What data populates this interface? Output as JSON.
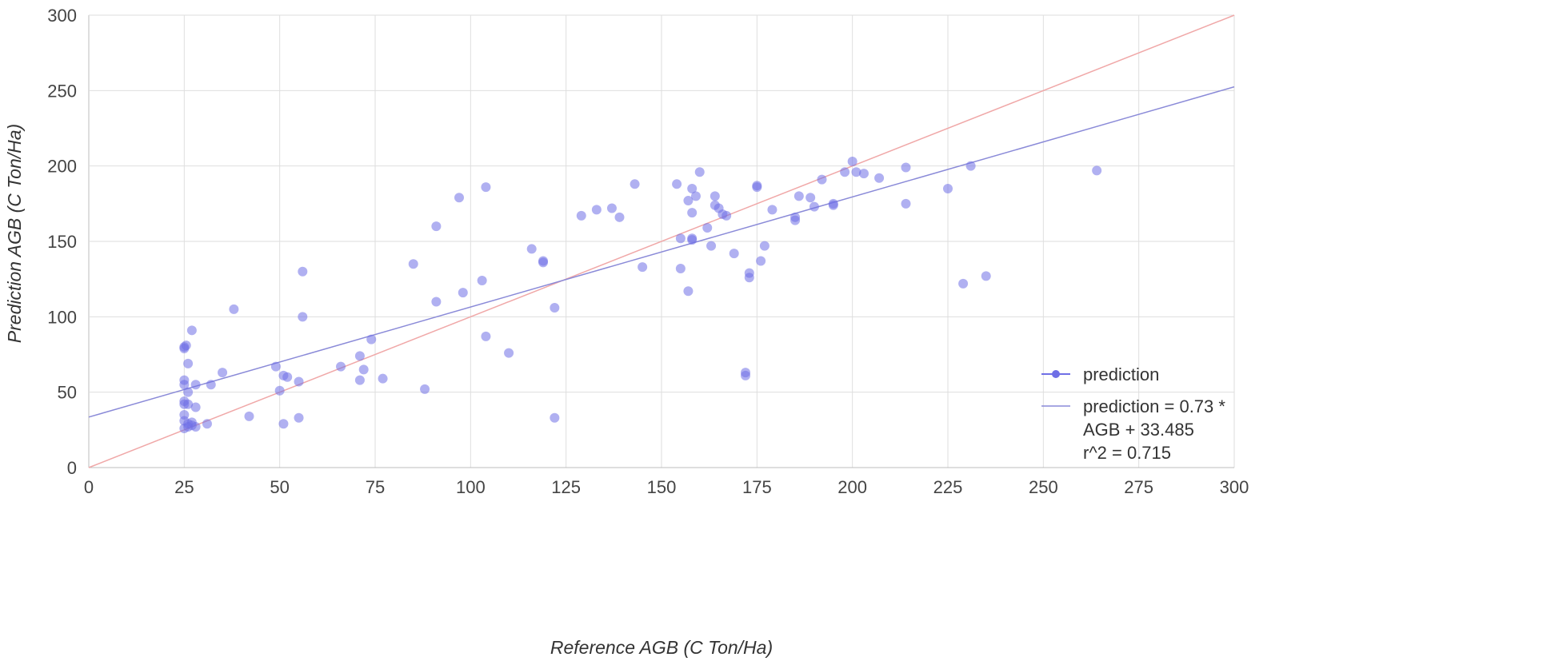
{
  "chart_data": {
    "type": "scatter",
    "xlabel": "Reference AGB (C Ton/Ha)",
    "ylabel": "Prediction AGB (C Ton/Ha)",
    "xlim": [
      0,
      300
    ],
    "ylim": [
      0,
      300
    ],
    "xticks": [
      "0",
      "25",
      "50",
      "75",
      "100",
      "125",
      "150",
      "175",
      "200",
      "225",
      "250",
      "275",
      "300"
    ],
    "yticks": [
      "0",
      "50",
      "100",
      "150",
      "200",
      "250",
      "300"
    ],
    "grid": true,
    "legend_position": "bottom-right",
    "colors": {
      "points": "#6f6fe6",
      "trendline": "#8a8ad8",
      "identity": "#f0a8a8",
      "grid": "#dedede"
    },
    "series": [
      {
        "name": "prediction",
        "points": [
          [
            25,
            80
          ],
          [
            25,
            79
          ],
          [
            25.5,
            81
          ],
          [
            25,
            58
          ],
          [
            25,
            55
          ],
          [
            26,
            50
          ],
          [
            26,
            69
          ],
          [
            27,
            91
          ],
          [
            28,
            55
          ],
          [
            28,
            40
          ],
          [
            25,
            44
          ],
          [
            25,
            42
          ],
          [
            26,
            42
          ],
          [
            25,
            35
          ],
          [
            25,
            31
          ],
          [
            26,
            29
          ],
          [
            26,
            27
          ],
          [
            27,
            28
          ],
          [
            25,
            26
          ],
          [
            28,
            27
          ],
          [
            27,
            30
          ],
          [
            31,
            29
          ],
          [
            32,
            55
          ],
          [
            35,
            63
          ],
          [
            38,
            105
          ],
          [
            42,
            34
          ],
          [
            49,
            67
          ],
          [
            50,
            51
          ],
          [
            51,
            61
          ],
          [
            52,
            60
          ],
          [
            51,
            29
          ],
          [
            55,
            57
          ],
          [
            55,
            33
          ],
          [
            56,
            130
          ],
          [
            56,
            100
          ],
          [
            66,
            67
          ],
          [
            71,
            58
          ],
          [
            71,
            74
          ],
          [
            72,
            65
          ],
          [
            74,
            85
          ],
          [
            77,
            59
          ],
          [
            85,
            135
          ],
          [
            88,
            52
          ],
          [
            91,
            110
          ],
          [
            91,
            160
          ],
          [
            97,
            179
          ],
          [
            98,
            116
          ],
          [
            103,
            124
          ],
          [
            104,
            186
          ],
          [
            104,
            87
          ],
          [
            110,
            76
          ],
          [
            116,
            145
          ],
          [
            119,
            137
          ],
          [
            119,
            136
          ],
          [
            122,
            106
          ],
          [
            122,
            33
          ],
          [
            129,
            167
          ],
          [
            133,
            171
          ],
          [
            137,
            172
          ],
          [
            139,
            166
          ],
          [
            143,
            188
          ],
          [
            145,
            133
          ],
          [
            154,
            188
          ],
          [
            155,
            152
          ],
          [
            155,
            132
          ],
          [
            157,
            117
          ],
          [
            157,
            177
          ],
          [
            158,
            151
          ],
          [
            158,
            152
          ],
          [
            158,
            185
          ],
          [
            158,
            169
          ],
          [
            159,
            180
          ],
          [
            160,
            196
          ],
          [
            162,
            159
          ],
          [
            163,
            147
          ],
          [
            164,
            180
          ],
          [
            164,
            174
          ],
          [
            165,
            172
          ],
          [
            166,
            168
          ],
          [
            167,
            167
          ],
          [
            169,
            142
          ],
          [
            172,
            63
          ],
          [
            172,
            61
          ],
          [
            173,
            126
          ],
          [
            173,
            129
          ],
          [
            175,
            186
          ],
          [
            175,
            187
          ],
          [
            176,
            137
          ],
          [
            177,
            147
          ],
          [
            179,
            171
          ],
          [
            185,
            164
          ],
          [
            185,
            166
          ],
          [
            186,
            180
          ],
          [
            189,
            179
          ],
          [
            190,
            173
          ],
          [
            192,
            191
          ],
          [
            195,
            175
          ],
          [
            195,
            174
          ],
          [
            198,
            196
          ],
          [
            200,
            203
          ],
          [
            201,
            196
          ],
          [
            203,
            195
          ],
          [
            207,
            192
          ],
          [
            214,
            175
          ],
          [
            214,
            199
          ],
          [
            225,
            185
          ],
          [
            229,
            122
          ],
          [
            231,
            200
          ],
          [
            235,
            127
          ],
          [
            264,
            197
          ]
        ]
      }
    ],
    "trendline": {
      "label": "prediction = 0.73 * AGB + 33.485",
      "slope": 0.73,
      "intercept": 33.485,
      "r2": 0.715
    },
    "identity_line": {
      "from": [
        0,
        0
      ],
      "to": [
        300,
        300
      ]
    }
  },
  "legend": {
    "series_label": "prediction",
    "trend_line1": "prediction = 0.73 *",
    "trend_line2": "AGB + 33.485",
    "trend_line3": "r^2 = 0.715"
  }
}
